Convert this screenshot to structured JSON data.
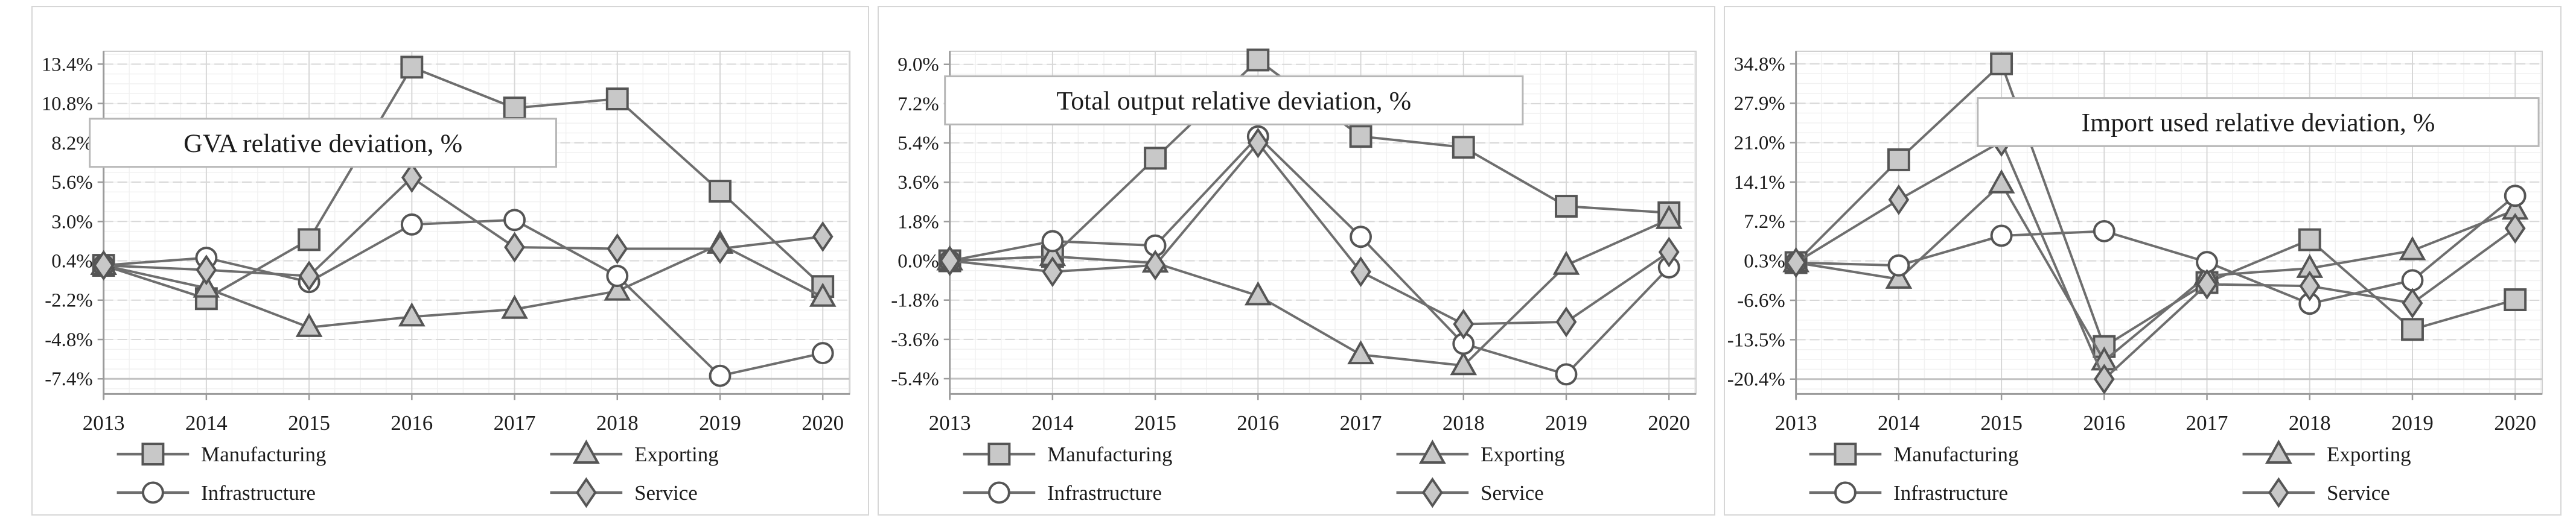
{
  "page": {
    "background": "#ffffff"
  },
  "categories": [
    "2013",
    "2014",
    "2015",
    "2016",
    "2017",
    "2018",
    "2019",
    "2020"
  ],
  "legend": [
    {
      "label": "Manufacturing",
      "marker": "square"
    },
    {
      "label": "Exporting",
      "marker": "triangle"
    },
    {
      "label": "Infrastructure",
      "marker": "circle"
    },
    {
      "label": "Service",
      "marker": "diamond"
    }
  ],
  "colors": {
    "line": "#6e6e6e",
    "marker_stroke": "#555555",
    "marker_fill": "#c8c8c8",
    "circle_fill": "#ffffff",
    "grid_major": "#d7d7d7",
    "grid_minor": "#f1f1f1",
    "axis": "#9b9b9b",
    "panel_border": "#d6d6d6",
    "title_box_border": "#b7b7b7",
    "text": "#1c1c1c"
  },
  "chart_data": [
    {
      "type": "line",
      "title": "GVA relative deviation, %",
      "x": [
        "2013",
        "2014",
        "2015",
        "2016",
        "2017",
        "2018",
        "2019",
        "2020"
      ],
      "y_ticks": [
        13.4,
        10.8,
        8.2,
        5.6,
        3.0,
        0.4,
        -2.2,
        -4.8,
        -7.4
      ],
      "y_tick_labels": [
        "13.4%",
        "10.8%",
        "8.2%",
        "5.6%",
        "3.0%",
        "0.4%",
        "-2.2%",
        "-4.8%",
        "-7.4%"
      ],
      "ylim": [
        -8.4,
        14.25
      ],
      "grid": true,
      "legend_position": "bottom",
      "title_box": {
        "x0": 95,
        "x1": 870,
        "v": 8.2
      },
      "series": [
        {
          "name": "Manufacturing",
          "marker": "square",
          "values": [
            0.1,
            -2.1,
            1.8,
            13.2,
            10.5,
            11.1,
            5.0,
            -1.3
          ]
        },
        {
          "name": "Exporting",
          "marker": "triangle",
          "values": [
            0.1,
            -1.4,
            -4.0,
            -3.3,
            -2.8,
            -1.6,
            1.5,
            -2.0
          ]
        },
        {
          "name": "Infrastructure",
          "marker": "circle",
          "values": [
            0.1,
            0.6,
            -1.0,
            2.8,
            3.1,
            -0.6,
            -7.2,
            -5.7
          ]
        },
        {
          "name": "Service",
          "marker": "diamond",
          "values": [
            0.1,
            -0.2,
            -0.6,
            5.9,
            1.3,
            1.2,
            1.2,
            2.0
          ]
        }
      ]
    },
    {
      "type": "line",
      "title": "Total output relative deviation, %",
      "x": [
        "2013",
        "2014",
        "2015",
        "2016",
        "2017",
        "2018",
        "2019",
        "2020"
      ],
      "y_ticks": [
        9.0,
        7.2,
        5.4,
        3.6,
        1.8,
        0.0,
        -1.8,
        -3.6,
        -5.4
      ],
      "y_tick_labels": [
        "9.0%",
        "7.2%",
        "5.4%",
        "3.6%",
        "1.8%",
        "0.0%",
        "-1.8%",
        "-3.6%",
        "-5.4%"
      ],
      "ylim": [
        -6.1,
        9.6
      ],
      "grid": true,
      "legend_position": "bottom",
      "title_box": {
        "x0": 110,
        "x1": 1070,
        "v": 7.35
      },
      "series": [
        {
          "name": "Manufacturing",
          "marker": "square",
          "values": [
            0.0,
            0.2,
            4.7,
            9.2,
            5.7,
            5.2,
            2.5,
            2.2
          ]
        },
        {
          "name": "Exporting",
          "marker": "triangle",
          "values": [
            0.0,
            0.2,
            -0.1,
            -1.6,
            -4.3,
            -4.8,
            -0.2,
            1.9
          ]
        },
        {
          "name": "Infrastructure",
          "marker": "circle",
          "values": [
            0.0,
            0.9,
            0.7,
            5.7,
            1.1,
            -3.8,
            -5.2,
            -0.3
          ]
        },
        {
          "name": "Service",
          "marker": "diamond",
          "values": [
            0.0,
            -0.5,
            -0.2,
            5.4,
            -0.5,
            -2.9,
            -2.8,
            0.4
          ]
        }
      ]
    },
    {
      "type": "line",
      "title": "Import used relative deviation,  %",
      "x": [
        "2013",
        "2014",
        "2015",
        "2016",
        "2017",
        "2018",
        "2019",
        "2020"
      ],
      "y_ticks": [
        34.8,
        27.9,
        21.0,
        14.1,
        7.2,
        0.3,
        -6.6,
        -13.5,
        -20.4
      ],
      "y_tick_labels": [
        "34.8%",
        "27.9%",
        "21.0%",
        "14.1%",
        "7.2%",
        "0.3%",
        "-6.6%",
        "-13.5%",
        "-20.4%"
      ],
      "ylim": [
        -23.0,
        37.0
      ],
      "grid": true,
      "legend_position": "bottom",
      "title_box": {
        "x0": 420,
        "x1": 1352,
        "v": 24.6
      },
      "series": [
        {
          "name": "Manufacturing",
          "marker": "square",
          "values": [
            0.0,
            18.0,
            34.8,
            -14.7,
            -3.5,
            4.0,
            -11.7,
            -6.5
          ]
        },
        {
          "name": "Exporting",
          "marker": "triangle",
          "values": [
            0.0,
            -2.9,
            13.8,
            -17.2,
            -2.3,
            -1.0,
            2.1,
            9.2
          ]
        },
        {
          "name": "Infrastructure",
          "marker": "circle",
          "values": [
            0.0,
            -0.5,
            4.7,
            5.5,
            0.1,
            -7.2,
            -3.1,
            11.7
          ]
        },
        {
          "name": "Service",
          "marker": "diamond",
          "values": [
            0.0,
            11.0,
            21.2,
            -20.4,
            -3.8,
            -4.1,
            -7.1,
            6.0
          ]
        }
      ]
    }
  ]
}
